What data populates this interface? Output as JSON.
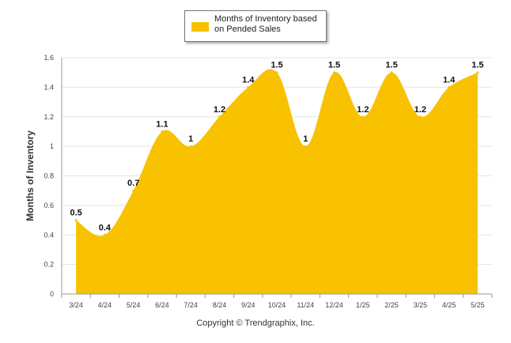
{
  "legend": {
    "label": "Months of Inventory based on Pended Sales"
  },
  "footer": {
    "copyright": "Copyright © Trendgraphix, Inc."
  },
  "colors": {
    "area": "#F8C200",
    "grid": "#e6e6e6",
    "axis": "#999999"
  },
  "chart_data": {
    "type": "area",
    "categories": [
      "3/24",
      "4/24",
      "5/24",
      "6/24",
      "7/24",
      "8/24",
      "9/24",
      "10/24",
      "11/24",
      "12/24",
      "1/25",
      "2/25",
      "3/25",
      "4/25",
      "5/25"
    ],
    "series": [
      {
        "name": "Months of Inventory based on Pended Sales",
        "values": [
          0.5,
          0.4,
          0.7,
          1.1,
          1.0,
          1.2,
          1.4,
          1.5,
          1.0,
          1.5,
          1.2,
          1.5,
          1.2,
          1.4,
          1.5
        ],
        "labels": [
          "0.5",
          "0.4",
          "0.7",
          "1.1",
          "1",
          "1.2",
          "1.4",
          "1.5",
          "1",
          "1.5",
          "1.2",
          "1.5",
          "1.2",
          "1.4",
          "1.5"
        ]
      }
    ],
    "ylabel": "Months of Inventory",
    "ylim": [
      0,
      1.6
    ],
    "yticks": [
      "0",
      "0.2",
      "0.4",
      "0.6",
      "0.8",
      "1",
      "1.2",
      "1.4",
      "1.6"
    ],
    "grid": true,
    "legend_position": "top-center"
  }
}
